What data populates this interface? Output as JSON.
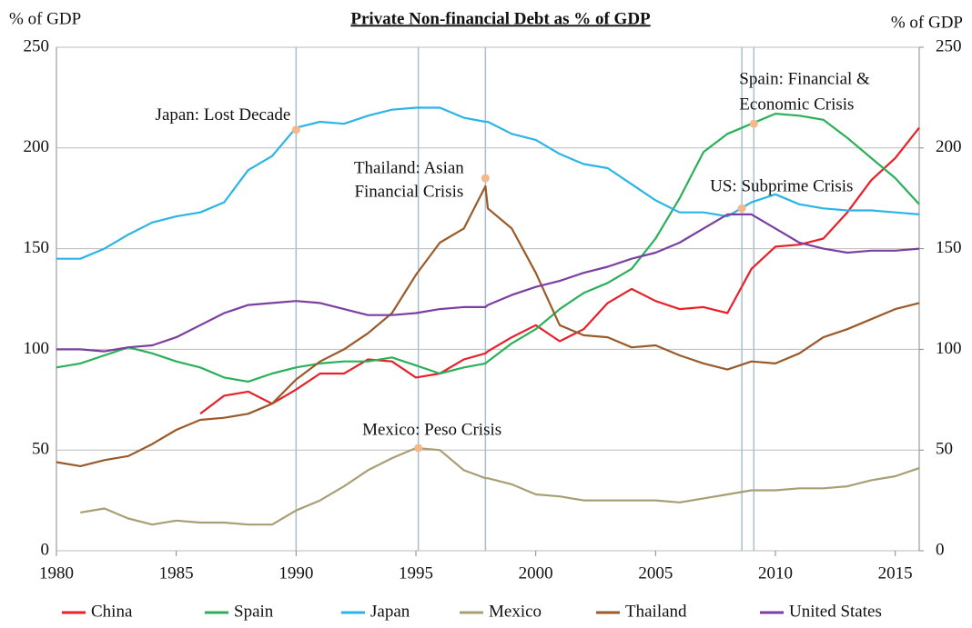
{
  "chart_data": {
    "type": "line",
    "title": "Private Non-financial Debt as % of GDP",
    "y_label": "% of GDP",
    "y2_label": "% of GDP",
    "x": [
      1980,
      1981,
      1982,
      1983,
      1984,
      1985,
      1986,
      1987,
      1988,
      1989,
      1990,
      1991,
      1992,
      1993,
      1994,
      1995,
      1996,
      1997,
      1997.9,
      1998,
      1999,
      2000,
      2001,
      2002,
      2003,
      2004,
      2005,
      2006,
      2007,
      2008,
      2009,
      2010,
      2011,
      2012,
      2013,
      2014,
      2015,
      2016
    ],
    "xlim": [
      1980,
      2016
    ],
    "xticks": [
      1980,
      1985,
      1990,
      1995,
      2000,
      2005,
      2010,
      2015
    ],
    "ylim": [
      0,
      250
    ],
    "yticks": [
      0,
      50,
      100,
      150,
      200,
      250
    ],
    "y2lim": [
      0,
      250
    ],
    "y2ticks": [
      0,
      50,
      100,
      150,
      200,
      250
    ],
    "grid": true,
    "legend": "bottom",
    "series": [
      {
        "name": "China",
        "color": "#e8202a",
        "values": [
          null,
          null,
          null,
          null,
          null,
          null,
          68,
          77,
          79,
          73,
          80,
          88,
          88,
          95,
          94,
          86,
          88,
          95,
          98,
          99,
          106,
          112,
          104,
          110,
          123,
          130,
          124,
          120,
          121,
          118,
          140,
          151,
          152,
          155,
          168,
          184,
          195,
          210
        ]
      },
      {
        "name": "Spain",
        "color": "#2bb05a",
        "values": [
          91,
          93,
          97,
          101,
          98,
          94,
          91,
          86,
          84,
          88,
          91,
          93,
          94,
          94,
          96,
          92,
          88,
          91,
          93,
          94,
          103,
          110,
          120,
          128,
          133,
          140,
          155,
          175,
          198,
          207,
          212,
          217,
          216,
          214,
          205,
          195,
          185,
          172
        ]
      },
      {
        "name": "Japan",
        "color": "#2bb5e6",
        "values": [
          145,
          145,
          150,
          157,
          163,
          166,
          168,
          173,
          189,
          196,
          210,
          213,
          212,
          216,
          219,
          220,
          220,
          215,
          213,
          213,
          207,
          204,
          197,
          192,
          190,
          182,
          174,
          168,
          168,
          166,
          173,
          177,
          172,
          170,
          169,
          169,
          168,
          167
        ]
      },
      {
        "name": "Mexico",
        "color": "#a89f74",
        "values": [
          null,
          19,
          21,
          16,
          13,
          15,
          14,
          14,
          13,
          13,
          20,
          25,
          32,
          40,
          46,
          51,
          50,
          40,
          36,
          36,
          33,
          28,
          27,
          25,
          25,
          25,
          25,
          24,
          26,
          28,
          30,
          30,
          31,
          31,
          32,
          35,
          37,
          41
        ]
      },
      {
        "name": "Thailand",
        "color": "#9a5a2a",
        "values": [
          44,
          42,
          45,
          47,
          53,
          60,
          65,
          66,
          68,
          73,
          85,
          94,
          100,
          108,
          118,
          137,
          153,
          160,
          181,
          170,
          160,
          138,
          112,
          107,
          106,
          101,
          102,
          97,
          93,
          90,
          94,
          93,
          98,
          106,
          110,
          115,
          120,
          123
        ]
      },
      {
        "name": "United States",
        "color": "#7b3fa0",
        "values": [
          100,
          100,
          99,
          101,
          102,
          106,
          112,
          118,
          122,
          123,
          124,
          123,
          120,
          117,
          117,
          118,
          120,
          121,
          121,
          122,
          127,
          131,
          134,
          138,
          141,
          145,
          148,
          153,
          160,
          167,
          167,
          160,
          153,
          150,
          148,
          149,
          149,
          150
        ]
      }
    ],
    "annotations": [
      {
        "text": [
          "Japan: Lost Decade"
        ],
        "x": 1990,
        "y": 209
      },
      {
        "text": [
          "Mexico: Peso Crisis"
        ],
        "x": 1995.1,
        "y": 51
      },
      {
        "text": [
          "Thailand: Asian",
          "Financial Crisis"
        ],
        "x": 1997.9,
        "y": 185
      },
      {
        "text": [
          "US: Subprime Crisis"
        ],
        "x": 2008.6,
        "y": 170
      },
      {
        "text": [
          "Spain: Financial &",
          "Economic Crisis"
        ],
        "x": 2009.1,
        "y": 212
      }
    ]
  }
}
